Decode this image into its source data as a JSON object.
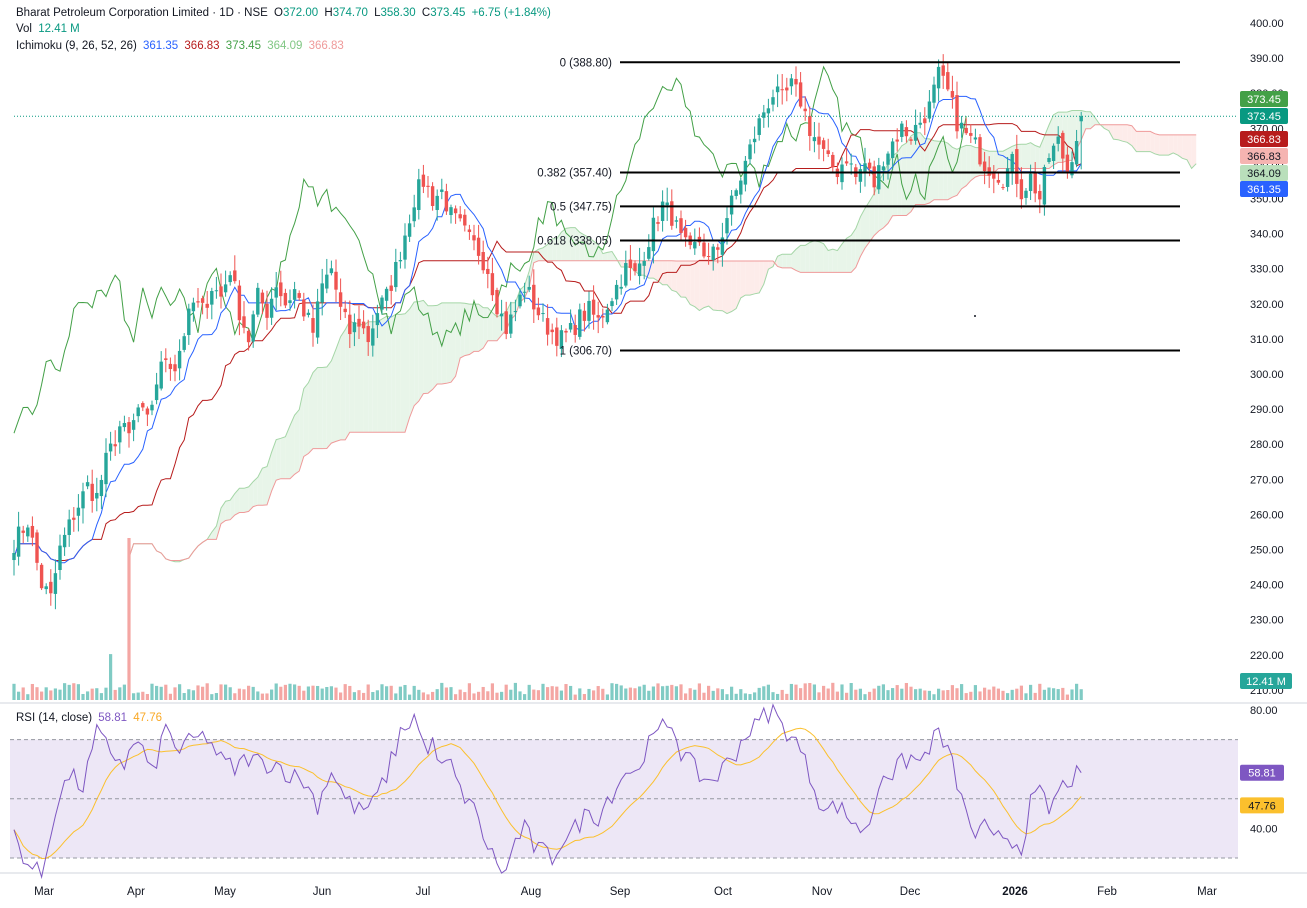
{
  "header": {
    "symbol": "Bharat Petroleum Corporation Limited · 1D · NSE",
    "o_label": "O",
    "o_value": "372.00",
    "h_label": "H",
    "h_value": "374.70",
    "l_label": "L",
    "l_value": "358.30",
    "c_label": "C",
    "c_value": "373.45",
    "change": "+6.75 (+1.84%)",
    "vol_label": "Vol",
    "vol_value": "12.41 M",
    "ichimoku_label": "Ichimoku (9, 26, 52, 26)",
    "ichimoku_values": [
      "361.35",
      "366.83",
      "373.45",
      "364.09",
      "366.83"
    ],
    "rsi_label": "RSI (14, close)",
    "rsi_value": "58.81",
    "rsi_ma_value": "47.76"
  },
  "colors": {
    "up": "#26a69a",
    "down": "#ef5350",
    "conversion": "#2962ff",
    "base": "#b71c1c",
    "lagging": "#43a047",
    "span_a": "#a5d6a7",
    "span_b": "#ef9a9a",
    "cloud_bull": "#e8f5e9",
    "cloud_bear": "#fdecea",
    "rsi": "#7e57c2",
    "rsi_ma": "#fbc02d",
    "rsi_band": "#ede7f6"
  },
  "chart_data": {
    "type": "candlestick",
    "price_axis": {
      "ticks": [
        210,
        220,
        230,
        240,
        250,
        260,
        270,
        280,
        290,
        300,
        310,
        320,
        330,
        340,
        350,
        360,
        370,
        380,
        390,
        400
      ],
      "labels": [
        "210.00",
        "220.00",
        "230.00",
        "240.00",
        "250.00",
        "260.00",
        "270.00",
        "280.00",
        "290.00",
        "300.00",
        "310.00",
        "320.00",
        "330.00",
        "340.00",
        "350.00",
        "360.00",
        "370.00",
        "380.00",
        "390.00",
        "400.00"
      ]
    },
    "rsi_axis": {
      "labels": [
        "80.00",
        "40.00"
      ],
      "upper_band": 70,
      "lower_band": 30,
      "mid": 50
    },
    "x_labels": [
      "Mar",
      "Apr",
      "May",
      "Jun",
      "Jul",
      "Aug",
      "Sep",
      "Oct",
      "Nov",
      "Dec",
      "2026",
      "Feb",
      "Mar"
    ],
    "fib_levels": [
      {
        "label": "0 (388.80)",
        "value": 388.8
      },
      {
        "label": "0.382 (357.40)",
        "value": 357.4
      },
      {
        "label": "0.5 (347.75)",
        "value": 347.75
      },
      {
        "label": "0.618 (338.05)",
        "value": 338.05
      },
      {
        "label": "1 (306.70)",
        "value": 306.7
      }
    ],
    "price_badges": [
      {
        "text": "373.45",
        "value": 373.45,
        "kind": "lagging"
      },
      {
        "text": "373.45",
        "value": 373.45,
        "kind": "last"
      },
      {
        "text": "366.83",
        "value": 366.83,
        "kind": "base"
      },
      {
        "text": "366.83",
        "value": 366.83,
        "kind": "span_b"
      },
      {
        "text": "364.09",
        "value": 364.09,
        "kind": "span_a"
      },
      {
        "text": "361.35",
        "value": 361.35,
        "kind": "conversion"
      }
    ],
    "volume_badge": "12.41 M",
    "rsi_badges": [
      {
        "text": "58.81",
        "value": 58.81,
        "kind": "rsi"
      },
      {
        "text": "47.76",
        "value": 47.76,
        "kind": "rsi_ma"
      }
    ],
    "last_close": 373.45,
    "anchors": [
      [
        0,
        252
      ],
      [
        3,
        258
      ],
      [
        6,
        240
      ],
      [
        8,
        236
      ],
      [
        10,
        250
      ],
      [
        13,
        260
      ],
      [
        16,
        268
      ],
      [
        18,
        265
      ],
      [
        20,
        275
      ],
      [
        23,
        285
      ],
      [
        25,
        282
      ],
      [
        27,
        290
      ],
      [
        29,
        286
      ],
      [
        31,
        298
      ],
      [
        33,
        305
      ],
      [
        35,
        302
      ],
      [
        37,
        312
      ],
      [
        39,
        320
      ],
      [
        41,
        318
      ],
      [
        43,
        325
      ],
      [
        45,
        322
      ],
      [
        47,
        330
      ],
      [
        49,
        318
      ],
      [
        51,
        310
      ],
      [
        53,
        322
      ],
      [
        55,
        318
      ],
      [
        57,
        326
      ],
      [
        59,
        320
      ],
      [
        61,
        324
      ],
      [
        63,
        318
      ],
      [
        65,
        312
      ],
      [
        67,
        325
      ],
      [
        69,
        330
      ],
      [
        71,
        318
      ],
      [
        73,
        312
      ],
      [
        75,
        315
      ],
      [
        77,
        310
      ],
      [
        79,
        318
      ],
      [
        81,
        322
      ],
      [
        83,
        330
      ],
      [
        85,
        340
      ],
      [
        87,
        350
      ],
      [
        89,
        355
      ],
      [
        91,
        350
      ],
      [
        93,
        352
      ],
      [
        95,
        345
      ],
      [
        97,
        342
      ],
      [
        99,
        338
      ],
      [
        101,
        335
      ],
      [
        103,
        330
      ],
      [
        105,
        320
      ],
      [
        107,
        313
      ],
      [
        109,
        318
      ],
      [
        111,
        325
      ],
      [
        113,
        320
      ],
      [
        115,
        315
      ],
      [
        117,
        312
      ],
      [
        119,
        310
      ],
      [
        121,
        312
      ],
      [
        123,
        316
      ],
      [
        125,
        318
      ],
      [
        127,
        315
      ],
      [
        129,
        320
      ],
      [
        131,
        325
      ],
      [
        133,
        330
      ],
      [
        135,
        328
      ],
      [
        137,
        335
      ],
      [
        139,
        342
      ],
      [
        141,
        348
      ],
      [
        143,
        345
      ],
      [
        145,
        338
      ],
      [
        147,
        334
      ],
      [
        149,
        338
      ],
      [
        151,
        332
      ],
      [
        153,
        336
      ],
      [
        155,
        345
      ],
      [
        157,
        352
      ],
      [
        159,
        360
      ],
      [
        161,
        368
      ],
      [
        163,
        375
      ],
      [
        165,
        380
      ],
      [
        167,
        378
      ],
      [
        169,
        382
      ],
      [
        171,
        378
      ],
      [
        173,
        370
      ],
      [
        175,
        365
      ],
      [
        177,
        360
      ],
      [
        179,
        358
      ],
      [
        181,
        362
      ],
      [
        183,
        356
      ],
      [
        185,
        360
      ],
      [
        187,
        354
      ],
      [
        189,
        362
      ],
      [
        191,
        366
      ],
      [
        193,
        370
      ],
      [
        195,
        368
      ],
      [
        197,
        372
      ],
      [
        199,
        376
      ],
      [
        201,
        385
      ],
      [
        203,
        380
      ],
      [
        205,
        372
      ],
      [
        207,
        368
      ],
      [
        209,
        365
      ],
      [
        211,
        360
      ],
      [
        213,
        358
      ],
      [
        215,
        356
      ],
      [
        217,
        360
      ],
      [
        219,
        352
      ],
      [
        221,
        356
      ],
      [
        223,
        350
      ],
      [
        225,
        362
      ],
      [
        227,
        366
      ],
      [
        229,
        358
      ],
      [
        231,
        368
      ],
      [
        232,
        373.45
      ]
    ],
    "volume": {
      "spike_bar": 25,
      "spike_value_m": 60,
      "typical_value_m": 4,
      "spike_bar_2": 21,
      "spike_value_2_m": 17
    },
    "rsi_anchors": [
      [
        0,
        38
      ],
      [
        3,
        28
      ],
      [
        6,
        24
      ],
      [
        9,
        47
      ],
      [
        12,
        58
      ],
      [
        15,
        54
      ],
      [
        18,
        72
      ],
      [
        21,
        66
      ],
      [
        24,
        62
      ],
      [
        27,
        70
      ],
      [
        30,
        58
      ],
      [
        33,
        74
      ],
      [
        36,
        66
      ],
      [
        39,
        70
      ],
      [
        42,
        71
      ],
      [
        45,
        63
      ],
      [
        48,
        60
      ],
      [
        51,
        64
      ],
      [
        54,
        62
      ],
      [
        57,
        62
      ],
      [
        60,
        58
      ],
      [
        63,
        56
      ],
      [
        66,
        48
      ],
      [
        69,
        60
      ],
      [
        72,
        50
      ],
      [
        75,
        46
      ],
      [
        78,
        48
      ],
      [
        81,
        58
      ],
      [
        84,
        72
      ],
      [
        87,
        78
      ],
      [
        89,
        68
      ],
      [
        91,
        68
      ],
      [
        93,
        60
      ],
      [
        95,
        62
      ],
      [
        97,
        52
      ],
      [
        99,
        50
      ],
      [
        101,
        42
      ],
      [
        103,
        34
      ],
      [
        105,
        28
      ],
      [
        107,
        25
      ],
      [
        109,
        36
      ],
      [
        111,
        40
      ],
      [
        113,
        34
      ],
      [
        115,
        32
      ],
      [
        117,
        30
      ],
      [
        119,
        36
      ],
      [
        121,
        38
      ],
      [
        123,
        42
      ],
      [
        125,
        46
      ],
      [
        127,
        44
      ],
      [
        129,
        50
      ],
      [
        131,
        54
      ],
      [
        133,
        60
      ],
      [
        135,
        58
      ],
      [
        137,
        66
      ],
      [
        139,
        70
      ],
      [
        141,
        74
      ],
      [
        143,
        76
      ],
      [
        145,
        66
      ],
      [
        147,
        62
      ],
      [
        149,
        58
      ],
      [
        151,
        56
      ],
      [
        153,
        58
      ],
      [
        155,
        62
      ],
      [
        157,
        66
      ],
      [
        159,
        72
      ],
      [
        161,
        74
      ],
      [
        163,
        78
      ],
      [
        165,
        80
      ],
      [
        167,
        74
      ],
      [
        169,
        72
      ],
      [
        171,
        66
      ],
      [
        173,
        58
      ],
      [
        175,
        50
      ],
      [
        177,
        46
      ],
      [
        179,
        48
      ],
      [
        181,
        44
      ],
      [
        183,
        42
      ],
      [
        185,
        38
      ],
      [
        187,
        48
      ],
      [
        189,
        60
      ],
      [
        191,
        58
      ],
      [
        193,
        62
      ],
      [
        195,
        64
      ],
      [
        197,
        62
      ],
      [
        199,
        68
      ],
      [
        201,
        72
      ],
      [
        203,
        66
      ],
      [
        205,
        56
      ],
      [
        207,
        44
      ],
      [
        209,
        38
      ],
      [
        211,
        40
      ],
      [
        213,
        35
      ],
      [
        215,
        38
      ],
      [
        217,
        36
      ],
      [
        219,
        34
      ],
      [
        221,
        48
      ],
      [
        223,
        52
      ],
      [
        225,
        46
      ],
      [
        227,
        52
      ],
      [
        229,
        56
      ],
      [
        232,
        58.81
      ]
    ]
  }
}
